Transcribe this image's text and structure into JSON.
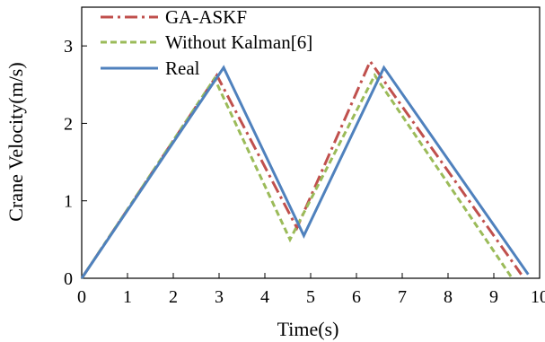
{
  "chart_data": {
    "type": "line",
    "xlabel": "Time(s)",
    "ylabel": "Crane Velocity(m/s)",
    "xlim": [
      0,
      10
    ],
    "ylim": [
      0,
      3.5
    ],
    "xticks": [
      0,
      1,
      2,
      3,
      4,
      5,
      6,
      7,
      8,
      9,
      10
    ],
    "yticks": [
      0,
      1,
      2,
      3
    ],
    "grid": false,
    "legend_position": "top-left",
    "series": [
      {
        "name": "GA-ASKF",
        "color": "#c0504d",
        "dash": "dashdot",
        "x": [
          0,
          2.95,
          4.7,
          6.3,
          9.6
        ],
        "y": [
          0,
          2.62,
          0.65,
          2.8,
          0.05
        ]
      },
      {
        "name": "Without Kalman[6]",
        "color": "#9bbb59",
        "dash": "dash",
        "x": [
          0,
          2.9,
          4.55,
          6.4,
          9.4
        ],
        "y": [
          0,
          2.58,
          0.5,
          2.62,
          0.0
        ]
      },
      {
        "name": "Real",
        "color": "#4f81bd",
        "dash": "solid",
        "x": [
          0,
          3.1,
          4.85,
          6.6,
          9.75
        ],
        "y": [
          0,
          2.72,
          0.55,
          2.72,
          0.05
        ]
      }
    ]
  }
}
